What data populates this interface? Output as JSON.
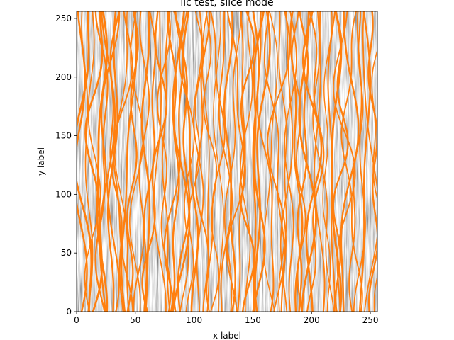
{
  "chart_data": {
    "type": "heatmap",
    "title": "lic test, slice mode",
    "xlabel": "x label",
    "ylabel": "y label",
    "xlim": [
      0,
      256
    ],
    "ylim": [
      0,
      256
    ],
    "x_ticks": [
      0,
      50,
      100,
      150,
      200,
      250
    ],
    "y_ticks": [
      0,
      50,
      100,
      150,
      200,
      250
    ],
    "x_tick_labels": [
      "0",
      "50",
      "100",
      "150",
      "200",
      "250"
    ],
    "y_tick_labels": [
      "0",
      "50",
      "100",
      "150",
      "200",
      "250"
    ],
    "background": "line integral convolution texture (grayscale)",
    "overlay": "streamlines",
    "streamline_color": "#ff7f0e",
    "grid": false,
    "legend": "none",
    "streamline_seed_x": [
      3,
      9,
      16,
      22,
      28,
      34,
      41,
      47,
      55,
      62,
      70,
      77,
      84,
      90,
      97,
      104,
      111,
      118,
      126,
      133,
      140,
      147,
      154,
      161,
      168,
      175,
      182,
      189,
      196,
      203,
      210,
      217,
      224,
      231,
      238,
      245,
      252
    ]
  }
}
